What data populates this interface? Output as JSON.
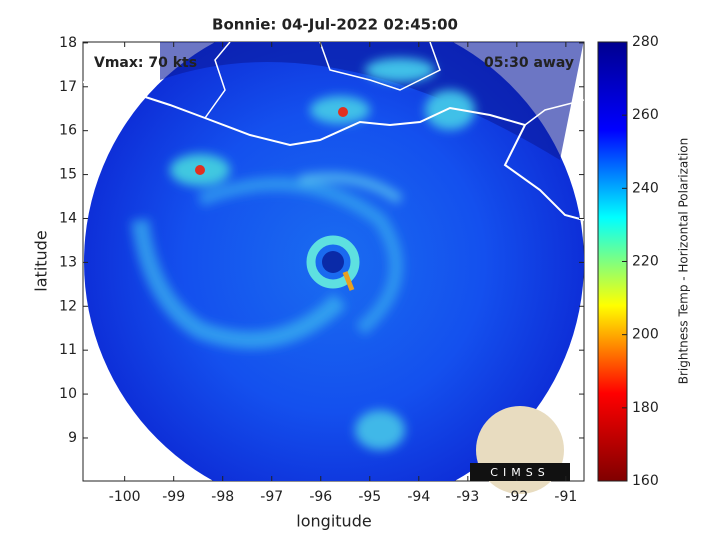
{
  "chart_data": {
    "type": "swath-map",
    "title": "Bonnie: 04-Jul-2022 02:45:00",
    "annotations": [
      "Vmax: 70 kts",
      "05:30 away"
    ],
    "x_label": "longitude",
    "y_label": "latitude",
    "xlim": [
      -100.85,
      -90.63
    ],
    "xticks": [
      -100,
      -99,
      -98,
      -97,
      -96,
      -95,
      -94,
      -93,
      -92,
      -91
    ],
    "ylim": [
      8.02,
      18.02
    ],
    "yticks": [
      9,
      10,
      11,
      12,
      13,
      14,
      15,
      16,
      17,
      18
    ],
    "colorbar": {
      "label": "Brightness Temp - Horizontal Polarization",
      "lim": [
        160,
        280
      ],
      "ticks": [
        160,
        180,
        200,
        220,
        240,
        260,
        280
      ],
      "colormap": "jet"
    },
    "logo": "CIMSS"
  }
}
